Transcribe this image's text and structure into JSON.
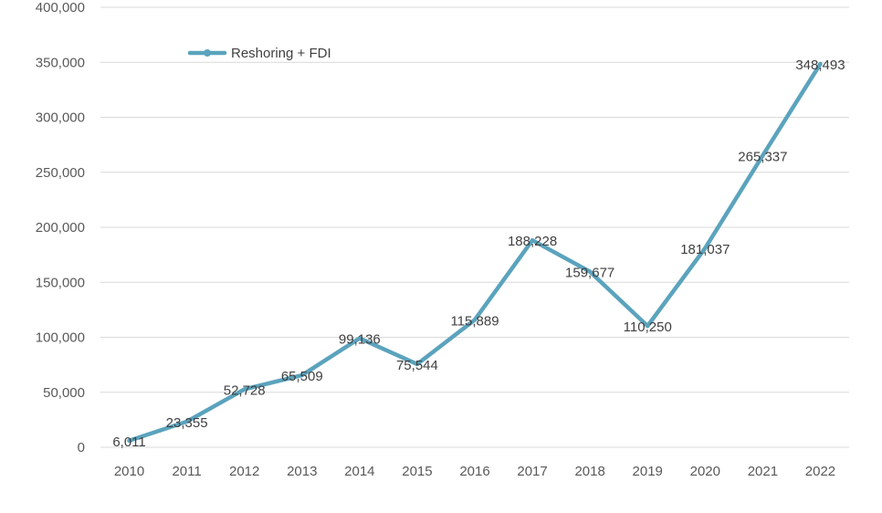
{
  "chart_data": {
    "type": "line",
    "categories": [
      "2010",
      "2011",
      "2012",
      "2013",
      "2014",
      "2015",
      "2016",
      "2017",
      "2018",
      "2019",
      "2020",
      "2021",
      "2022"
    ],
    "series": [
      {
        "name": "Reshoring + FDI",
        "values": [
          6011,
          23355,
          52728,
          65509,
          99136,
          75544,
          115889,
          188228,
          159677,
          110250,
          181037,
          265337,
          348493
        ],
        "labels": [
          "6,011",
          "23,355",
          "52,728",
          "65,509",
          "99,136",
          "75,544",
          "115,889",
          "188,228",
          "159,677",
          "110,250",
          "181,037",
          "265,337",
          "348,493"
        ],
        "color": "#5ba3bd"
      }
    ],
    "yticks": [
      "0",
      "50,000",
      "100,000",
      "150,000",
      "200,000",
      "250,000",
      "300,000",
      "350,000",
      "400,000"
    ],
    "ylim": [
      0,
      400000
    ],
    "grid": true,
    "legend_position": "top-left",
    "title": "",
    "xlabel": "",
    "ylabel": ""
  },
  "colors": {
    "line": "#5ba3bd",
    "grid": "#d9d9d9",
    "tick_text": "#595959",
    "label_text": "#404040"
  }
}
